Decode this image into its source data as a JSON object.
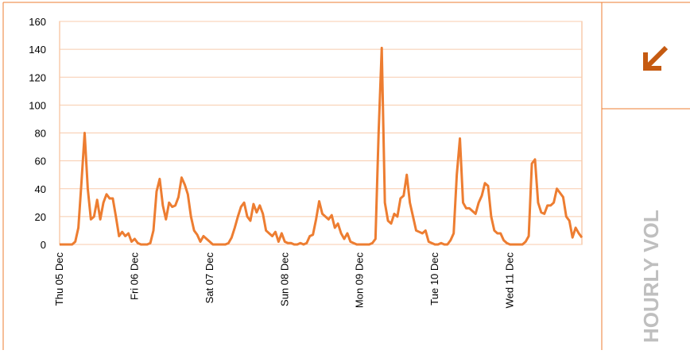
{
  "chart_data": {
    "type": "line",
    "categories": [
      "Thu 05 Dec",
      null,
      null,
      null,
      null,
      null,
      null,
      null,
      null,
      null,
      null,
      null,
      null,
      null,
      null,
      null,
      null,
      null,
      null,
      null,
      null,
      null,
      null,
      null,
      "Fri 06 Dec",
      null,
      null,
      null,
      null,
      null,
      null,
      null,
      null,
      null,
      null,
      null,
      null,
      null,
      null,
      null,
      null,
      null,
      null,
      null,
      null,
      null,
      null,
      null,
      "Sat 07 Dec",
      null,
      null,
      null,
      null,
      null,
      null,
      null,
      null,
      null,
      null,
      null,
      null,
      null,
      null,
      null,
      null,
      null,
      null,
      null,
      null,
      null,
      null,
      null,
      "Sun 08 Dec",
      null,
      null,
      null,
      null,
      null,
      null,
      null,
      null,
      null,
      null,
      null,
      null,
      null,
      null,
      null,
      null,
      null,
      null,
      null,
      null,
      null,
      null,
      null,
      "Mon 09 Dec",
      null,
      null,
      null,
      null,
      null,
      null,
      null,
      null,
      null,
      null,
      null,
      null,
      null,
      null,
      null,
      null,
      null,
      null,
      null,
      null,
      null,
      null,
      null,
      "Tue 10 Dec",
      null,
      null,
      null,
      null,
      null,
      null,
      null,
      null,
      null,
      null,
      null,
      null,
      null,
      null,
      null,
      null,
      null,
      null,
      null,
      null,
      null,
      null,
      null,
      "Wed 11 Dec",
      null,
      null,
      null,
      null,
      null,
      null,
      null,
      null,
      null,
      null,
      null,
      null,
      null,
      null,
      null,
      null,
      null,
      null,
      null,
      null,
      null,
      null,
      null
    ],
    "series": [
      {
        "color": "#ed7d31",
        "values": [
          0,
          0,
          0,
          0,
          0,
          2,
          12,
          45,
          80,
          40,
          18,
          20,
          32,
          18,
          30,
          36,
          33,
          33,
          20,
          6,
          9,
          6,
          8,
          2,
          4,
          1,
          0,
          0,
          0,
          1,
          10,
          38,
          47,
          28,
          18,
          30,
          27,
          28,
          34,
          48,
          43,
          36,
          20,
          10,
          7,
          2,
          6,
          4,
          2,
          0,
          0,
          0,
          0,
          0,
          1,
          5,
          12,
          20,
          27,
          30,
          20,
          17,
          29,
          23,
          28,
          22,
          10,
          8,
          6,
          9,
          2,
          8,
          2,
          1,
          1,
          0,
          0,
          1,
          0,
          1,
          6,
          7,
          18,
          31,
          22,
          20,
          18,
          21,
          12,
          15,
          8,
          4,
          8,
          2,
          1,
          0,
          0,
          0,
          0,
          0,
          1,
          4,
          80,
          141,
          30,
          17,
          15,
          22,
          20,
          33,
          35,
          50,
          30,
          20,
          10,
          9,
          8,
          10,
          2,
          1,
          0,
          0,
          1,
          0,
          0,
          3,
          8,
          50,
          76,
          30,
          26,
          26,
          24,
          22,
          30,
          35,
          44,
          42,
          20,
          10,
          8,
          8,
          3,
          1,
          0,
          0,
          0,
          0,
          0,
          2,
          6,
          58,
          61,
          30,
          23,
          22,
          28,
          28,
          30,
          40,
          37,
          34,
          20,
          17,
          5,
          12,
          8,
          5
        ]
      }
    ],
    "ylim": [
      0,
      160
    ],
    "yticks": [
      0,
      20,
      40,
      60,
      80,
      100,
      120,
      140,
      160
    ],
    "grid": true
  },
  "panel": {
    "label": "HOURLY VOL"
  }
}
